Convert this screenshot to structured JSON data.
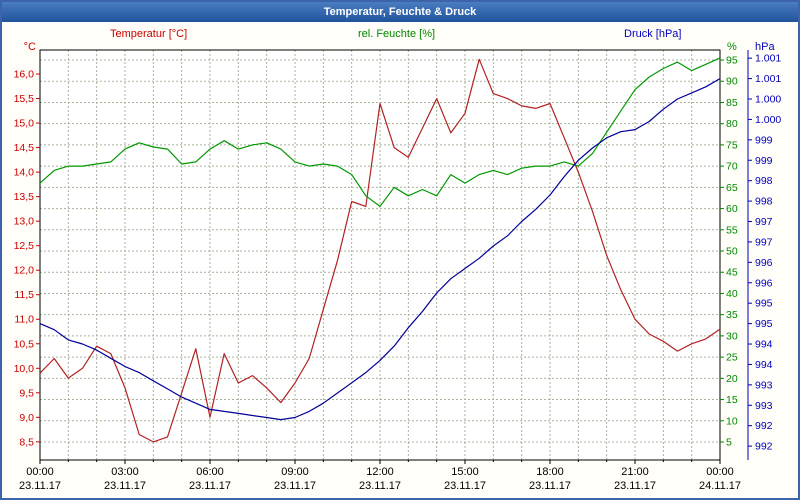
{
  "window": {
    "title": "Temperatur, Feuchte & Druck"
  },
  "legend": {
    "temperature": "Temperatur [°C]",
    "humidity": "rel. Feuchte [%]",
    "pressure": "Druck [hPa]"
  },
  "axis_units": {
    "temperature": "°C",
    "humidity": "%",
    "pressure": "hPa"
  },
  "colors": {
    "temperature": "#cc0000",
    "humidity": "#008800",
    "pressure": "#0000bb",
    "titlebar_top": "#4a7cc0",
    "titlebar_bottom": "#20549c",
    "frame": "#3c64aa",
    "page_bg": "#fffef8",
    "plot_bg": "#ffffff",
    "plot_border": "#000000",
    "grid": "#a9b29b"
  },
  "chart_data": {
    "type": "line",
    "title": "Temperatur, Feuchte & Druck",
    "x_hours": [
      0,
      0.5,
      1,
      1.5,
      2,
      2.5,
      3,
      3.5,
      4,
      4.5,
      5,
      5.5,
      6,
      6.5,
      7,
      7.5,
      8,
      8.5,
      9,
      9.5,
      10,
      10.5,
      11,
      11.5,
      12,
      12.5,
      13,
      13.5,
      14,
      14.5,
      15,
      15.5,
      16,
      16.5,
      17,
      17.5,
      18,
      18.5,
      19,
      19.5,
      20,
      20.5,
      21,
      21.5,
      22,
      22.5,
      23,
      23.5,
      24
    ],
    "x_ticks": {
      "hours": [
        0,
        3,
        6,
        9,
        12,
        15,
        18,
        21,
        24
      ],
      "times": [
        "00:00",
        "03:00",
        "06:00",
        "09:00",
        "12:00",
        "15:00",
        "18:00",
        "21:00",
        "00:00"
      ],
      "dates": [
        "23.11.17",
        "23.11.17",
        "23.11.17",
        "23.11.17",
        "23.11.17",
        "23.11.17",
        "23.11.17",
        "23.11.17",
        "24.11.17"
      ]
    },
    "axes": {
      "temperature": {
        "label": "Temperatur [°C]",
        "unit": "°C",
        "color": "#cc0000",
        "range": [
          8.13,
          16.49
        ],
        "tick_values": [
          16,
          15.5,
          15,
          14.5,
          14,
          13.5,
          13,
          12.5,
          12,
          11.5,
          11,
          10.5,
          10,
          9.5,
          9,
          8.5
        ],
        "tick_labels": [
          "16,0",
          "15,5",
          "15,0",
          "14,5",
          "14,0",
          "13,5",
          "13,0",
          "12,5",
          "12,0",
          "11,5",
          "11,0",
          "10,5",
          "10,0",
          "9,5",
          "9,0",
          "8,5"
        ]
      },
      "humidity": {
        "label": "rel. Feuchte [%]",
        "unit": "%",
        "color": "#008800",
        "range": [
          0.76,
          97.36
        ],
        "tick_values": [
          95,
          90,
          85,
          80,
          75,
          70,
          65,
          60,
          55,
          50,
          45,
          40,
          35,
          30,
          25,
          20,
          15,
          10,
          5
        ],
        "tick_labels": [
          "95",
          "90",
          "85",
          "80",
          "75",
          "70",
          "65",
          "60",
          "55",
          "50",
          "45",
          "40",
          "35",
          "30",
          "25",
          "20",
          "15",
          "10",
          "5"
        ]
      },
      "pressure": {
        "label": "Druck [hPa]",
        "unit": "hPa",
        "color": "#0000bb",
        "range": [
          991.66,
          1001.7
        ],
        "tick_values": [
          1001.5,
          1001,
          1000.5,
          1000,
          999.5,
          999,
          998.5,
          998,
          997.5,
          997,
          996.5,
          996,
          995.5,
          995,
          994.5,
          994,
          993.5,
          993,
          992.5,
          992
        ],
        "tick_labels": [
          "1.001",
          "1.001",
          "1.000",
          "1.000",
          "999",
          "999",
          "998",
          "998",
          "997",
          "997",
          "996",
          "996",
          "995",
          "995",
          "994",
          "994",
          "993",
          "993",
          "992",
          "992"
        ]
      }
    },
    "series": [
      {
        "name": "Temperatur",
        "axis": "temperature",
        "color": "#b22222",
        "values": [
          9.9,
          10.2,
          9.8,
          10.0,
          10.45,
          10.3,
          9.6,
          8.65,
          8.5,
          8.6,
          9.5,
          10.4,
          9.0,
          10.3,
          9.7,
          9.85,
          9.6,
          9.3,
          9.7,
          10.2,
          11.2,
          12.2,
          13.4,
          13.3,
          15.4,
          14.5,
          14.3,
          14.9,
          15.5,
          14.8,
          15.2,
          16.3,
          15.6,
          15.5,
          15.35,
          15.3,
          15.4,
          14.7,
          14.0,
          13.2,
          12.3,
          11.6,
          11.0,
          10.7,
          10.55,
          10.35,
          10.5,
          10.6,
          10.8
        ]
      },
      {
        "name": "rel. Feuchte",
        "axis": "humidity",
        "color": "#009900",
        "values": [
          66,
          69,
          70,
          70,
          70.5,
          71,
          74,
          75.5,
          74.5,
          74,
          70.5,
          71,
          74,
          76,
          74,
          75,
          75.5,
          74,
          71,
          70,
          70.5,
          70,
          68,
          63,
          60.5,
          65,
          63,
          64.5,
          63,
          68,
          66,
          68,
          69,
          68,
          69.5,
          70,
          70,
          71,
          70,
          73,
          78,
          83,
          88,
          91,
          93,
          94.5,
          92.5,
          94,
          95.5
        ]
      },
      {
        "name": "Druck",
        "axis": "pressure",
        "color": "#000099",
        "values": [
          995.0,
          994.85,
          994.6,
          994.5,
          994.35,
          994.15,
          993.95,
          993.8,
          993.6,
          993.4,
          993.2,
          993.05,
          992.9,
          992.85,
          992.8,
          992.75,
          992.7,
          992.65,
          992.7,
          992.85,
          993.05,
          993.3,
          993.55,
          993.8,
          994.1,
          994.45,
          994.9,
          995.3,
          995.75,
          996.1,
          996.35,
          996.6,
          996.9,
          997.15,
          997.5,
          997.8,
          998.15,
          998.6,
          999.0,
          999.3,
          999.55,
          999.7,
          999.75,
          999.95,
          1000.25,
          1000.5,
          1000.65,
          1000.8,
          1001.0
        ]
      }
    ],
    "grid": {
      "horizontal_follow": "humidity",
      "vertical_every_hours": 1,
      "color": "#a9b29b",
      "dash": "2 2"
    }
  }
}
